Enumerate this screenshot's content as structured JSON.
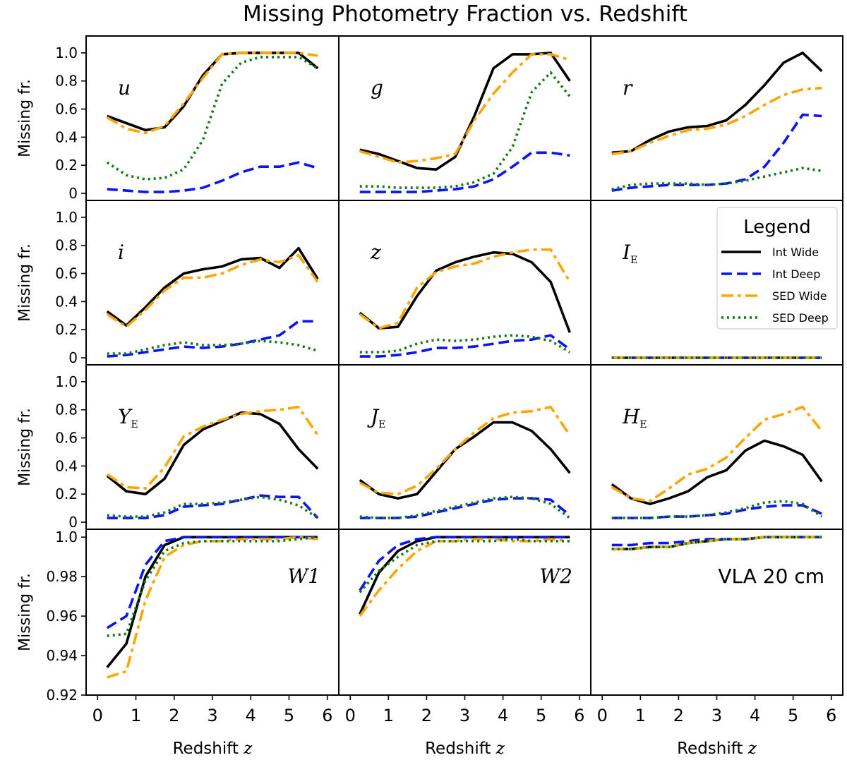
{
  "chart_data": {
    "type": "line",
    "title": "Missing Photometry Fraction vs. Redshift",
    "xlabel": "Redshift z",
    "ylabel": "Missing fr.",
    "x": [
      0.25,
      0.75,
      1.25,
      1.75,
      2.25,
      2.75,
      3.25,
      3.75,
      4.25,
      4.75,
      5.25,
      5.75
    ],
    "xlim": [
      -0.3,
      6.3
    ],
    "xticks": [
      "0",
      "1",
      "2",
      "3",
      "4",
      "5",
      "6"
    ],
    "ylim_main": [
      -0.05,
      1.12
    ],
    "yticks_main": [
      "0",
      "0.2",
      "0.4",
      "0.6",
      "0.8",
      "1.0"
    ],
    "ylim_bottom": [
      0.92,
      1.004
    ],
    "yticks_bottom": [
      "0.92",
      "0.94",
      "0.96",
      "0.98",
      "1.0"
    ],
    "legend": {
      "title": "Legend",
      "placement": "inside panel I_E, top-right",
      "entries": [
        "Int Wide",
        "Int Deep",
        "SED Wide",
        "SED Deep"
      ]
    },
    "series_styles": [
      {
        "name": "Int Wide",
        "color": "#000000",
        "dash": "solid"
      },
      {
        "name": "Int Deep",
        "color": "#0a14f5",
        "dash": "dashed"
      },
      {
        "name": "SED Wide",
        "color": "#ffa500",
        "dash": "dashdot"
      },
      {
        "name": "SED Deep",
        "color": "#137a13",
        "dash": "dotted"
      }
    ],
    "panels": [
      {
        "label": "u",
        "italic": true,
        "series": [
          {
            "name": "Int Wide",
            "values": [
              0.55,
              0.5,
              0.45,
              0.47,
              0.62,
              0.84,
              0.99,
              1.0,
              1.0,
              1.0,
              1.0,
              0.89
            ]
          },
          {
            "name": "Int Deep",
            "values": [
              0.03,
              0.02,
              0.01,
              0.01,
              0.02,
              0.04,
              0.09,
              0.15,
              0.19,
              0.19,
              0.22,
              0.18
            ]
          },
          {
            "name": "SED Wide",
            "values": [
              0.54,
              0.46,
              0.43,
              0.48,
              0.64,
              0.82,
              0.99,
              1.0,
              1.0,
              1.0,
              1.0,
              0.98
            ]
          },
          {
            "name": "SED Deep",
            "values": [
              0.22,
              0.13,
              0.1,
              0.11,
              0.17,
              0.38,
              0.78,
              0.93,
              0.97,
              0.97,
              0.97,
              0.89
            ]
          }
        ]
      },
      {
        "label": "g",
        "italic": true,
        "series": [
          {
            "name": "Int Wide",
            "values": [
              0.31,
              0.28,
              0.23,
              0.18,
              0.17,
              0.26,
              0.55,
              0.89,
              0.99,
              0.99,
              1.0,
              0.8
            ]
          },
          {
            "name": "Int Deep",
            "values": [
              0.01,
              0.01,
              0.01,
              0.01,
              0.02,
              0.03,
              0.05,
              0.1,
              0.19,
              0.29,
              0.29,
              0.27
            ]
          },
          {
            "name": "SED Wide",
            "values": [
              0.3,
              0.26,
              0.22,
              0.23,
              0.25,
              0.28,
              0.52,
              0.71,
              0.86,
              0.99,
              0.99,
              0.95
            ]
          },
          {
            "name": "SED Deep",
            "values": [
              0.05,
              0.05,
              0.04,
              0.04,
              0.04,
              0.05,
              0.08,
              0.14,
              0.33,
              0.72,
              0.86,
              0.69
            ]
          }
        ]
      },
      {
        "label": "r",
        "italic": true,
        "series": [
          {
            "name": "Int Wide",
            "values": [
              0.29,
              0.3,
              0.38,
              0.44,
              0.47,
              0.48,
              0.52,
              0.63,
              0.77,
              0.93,
              1.0,
              0.87
            ]
          },
          {
            "name": "Int Deep",
            "values": [
              0.02,
              0.04,
              0.05,
              0.06,
              0.06,
              0.06,
              0.07,
              0.1,
              0.19,
              0.36,
              0.56,
              0.55
            ]
          },
          {
            "name": "SED Wide",
            "values": [
              0.28,
              0.3,
              0.36,
              0.41,
              0.45,
              0.46,
              0.49,
              0.55,
              0.63,
              0.7,
              0.74,
              0.75
            ]
          },
          {
            "name": "SED Deep",
            "values": [
              0.03,
              0.06,
              0.07,
              0.07,
              0.07,
              0.06,
              0.07,
              0.09,
              0.12,
              0.15,
              0.18,
              0.16
            ]
          }
        ]
      },
      {
        "label": "i",
        "italic": true,
        "series": [
          {
            "name": "Int Wide",
            "values": [
              0.33,
              0.23,
              0.36,
              0.5,
              0.6,
              0.63,
              0.65,
              0.7,
              0.71,
              0.64,
              0.78,
              0.56
            ]
          },
          {
            "name": "Int Deep",
            "values": [
              0.01,
              0.02,
              0.04,
              0.06,
              0.08,
              0.07,
              0.08,
              0.1,
              0.13,
              0.16,
              0.26,
              0.26
            ]
          },
          {
            "name": "SED Wide",
            "values": [
              0.31,
              0.22,
              0.34,
              0.48,
              0.57,
              0.57,
              0.6,
              0.66,
              0.7,
              0.68,
              0.73,
              0.54
            ]
          },
          {
            "name": "SED Deep",
            "values": [
              0.03,
              0.03,
              0.06,
              0.09,
              0.11,
              0.09,
              0.09,
              0.1,
              0.12,
              0.11,
              0.09,
              0.05
            ]
          }
        ]
      },
      {
        "label": "z",
        "italic": true,
        "series": [
          {
            "name": "Int Wide",
            "values": [
              0.32,
              0.21,
              0.22,
              0.44,
              0.62,
              0.68,
              0.72,
              0.75,
              0.74,
              0.68,
              0.54,
              0.18
            ]
          },
          {
            "name": "Int Deep",
            "values": [
              0.01,
              0.01,
              0.02,
              0.04,
              0.07,
              0.07,
              0.08,
              0.1,
              0.12,
              0.13,
              0.16,
              0.06
            ]
          },
          {
            "name": "SED Wide",
            "values": [
              0.31,
              0.21,
              0.25,
              0.5,
              0.61,
              0.65,
              0.67,
              0.72,
              0.75,
              0.77,
              0.77,
              0.54
            ]
          },
          {
            "name": "SED Deep",
            "values": [
              0.04,
              0.04,
              0.05,
              0.1,
              0.13,
              0.12,
              0.13,
              0.15,
              0.16,
              0.15,
              0.12,
              0.04
            ]
          }
        ]
      },
      {
        "label": "I",
        "sub": "E",
        "italic": true,
        "series": [
          {
            "name": "Int Wide",
            "values": [
              0,
              0,
              0,
              0,
              0,
              0,
              0,
              0,
              0,
              0,
              0,
              0
            ]
          },
          {
            "name": "Int Deep",
            "values": [
              0,
              0,
              0,
              0,
              0,
              0,
              0,
              0,
              0,
              0,
              0,
              0
            ]
          },
          {
            "name": "SED Wide",
            "values": [
              0,
              0,
              0,
              0,
              0,
              0,
              0,
              0,
              0,
              0,
              0,
              0
            ]
          },
          {
            "name": "SED Deep",
            "values": [
              0,
              0,
              0,
              0,
              0,
              0,
              0,
              0,
              0,
              0,
              0,
              0
            ]
          }
        ]
      },
      {
        "label": "Y",
        "sub": "E",
        "italic": true,
        "series": [
          {
            "name": "Int Wide",
            "values": [
              0.33,
              0.22,
              0.2,
              0.31,
              0.55,
              0.66,
              0.72,
              0.78,
              0.77,
              0.7,
              0.52,
              0.38
            ]
          },
          {
            "name": "Int Deep",
            "values": [
              0.03,
              0.03,
              0.03,
              0.05,
              0.11,
              0.12,
              0.13,
              0.16,
              0.19,
              0.18,
              0.18,
              0.03
            ]
          },
          {
            "name": "SED Wide",
            "values": [
              0.34,
              0.25,
              0.24,
              0.39,
              0.61,
              0.68,
              0.73,
              0.77,
              0.79,
              0.8,
              0.82,
              0.62
            ]
          },
          {
            "name": "SED Deep",
            "values": [
              0.05,
              0.04,
              0.04,
              0.07,
              0.13,
              0.13,
              0.14,
              0.16,
              0.18,
              0.16,
              0.12,
              0.03
            ]
          }
        ]
      },
      {
        "label": "J",
        "sub": "E",
        "italic": true,
        "series": [
          {
            "name": "Int Wide",
            "values": [
              0.3,
              0.2,
              0.17,
              0.2,
              0.36,
              0.52,
              0.61,
              0.71,
              0.71,
              0.65,
              0.52,
              0.35
            ]
          },
          {
            "name": "Int Deep",
            "values": [
              0.03,
              0.03,
              0.03,
              0.04,
              0.07,
              0.1,
              0.13,
              0.16,
              0.17,
              0.17,
              0.16,
              0.05
            ]
          },
          {
            "name": "SED Wide",
            "values": [
              0.28,
              0.21,
              0.2,
              0.26,
              0.38,
              0.52,
              0.64,
              0.74,
              0.78,
              0.79,
              0.82,
              0.62
            ]
          },
          {
            "name": "SED Deep",
            "values": [
              0.04,
              0.03,
              0.03,
              0.05,
              0.08,
              0.11,
              0.14,
              0.17,
              0.18,
              0.17,
              0.13,
              0.03
            ]
          }
        ]
      },
      {
        "label": "H",
        "sub": "E",
        "italic": true,
        "series": [
          {
            "name": "Int Wide",
            "values": [
              0.27,
              0.17,
              0.13,
              0.17,
              0.22,
              0.32,
              0.37,
              0.51,
              0.58,
              0.54,
              0.48,
              0.29
            ]
          },
          {
            "name": "Int Deep",
            "values": [
              0.03,
              0.03,
              0.03,
              0.04,
              0.04,
              0.05,
              0.06,
              0.09,
              0.11,
              0.12,
              0.12,
              0.06
            ]
          },
          {
            "name": "SED Wide",
            "values": [
              0.25,
              0.17,
              0.15,
              0.24,
              0.34,
              0.38,
              0.46,
              0.6,
              0.73,
              0.77,
              0.82,
              0.65
            ]
          },
          {
            "name": "SED Deep",
            "values": [
              0.03,
              0.03,
              0.03,
              0.04,
              0.04,
              0.05,
              0.07,
              0.1,
              0.14,
              0.15,
              0.13,
              0.04
            ]
          }
        ]
      },
      {
        "label": "W1",
        "italic": true,
        "series": [
          {
            "name": "Int Wide",
            "values": [
              0.934,
              0.946,
              0.98,
              0.996,
              1.0,
              1.0,
              1.0,
              1.0,
              1.0,
              1.0,
              1.0,
              1.0
            ]
          },
          {
            "name": "Int Deep",
            "values": [
              0.954,
              0.96,
              0.986,
              0.998,
              1.0,
              1.0,
              1.0,
              1.0,
              1.0,
              1.0,
              1.0,
              1.0
            ]
          },
          {
            "name": "SED Wide",
            "values": [
              0.929,
              0.932,
              0.968,
              0.99,
              0.996,
              0.998,
              0.998,
              0.999,
              0.999,
              0.999,
              1.0,
              0.999
            ]
          },
          {
            "name": "SED Deep",
            "values": [
              0.95,
              0.951,
              0.978,
              0.993,
              0.997,
              0.998,
              0.998,
              0.998,
              0.998,
              0.998,
              0.999,
              1.0
            ]
          }
        ]
      },
      {
        "label": "W2",
        "italic": true,
        "series": [
          {
            "name": "Int Wide",
            "values": [
              0.961,
              0.982,
              0.993,
              0.998,
              1.0,
              1.0,
              1.0,
              1.0,
              1.0,
              1.0,
              1.0,
              1.0
            ]
          },
          {
            "name": "Int Deep",
            "values": [
              0.973,
              0.988,
              0.996,
              0.999,
              1.0,
              1.0,
              1.0,
              1.0,
              1.0,
              1.0,
              1.0,
              1.0
            ]
          },
          {
            "name": "SED Wide",
            "values": [
              0.96,
              0.973,
              0.984,
              0.993,
              0.998,
              0.998,
              0.999,
              0.999,
              0.998,
              0.998,
              0.999,
              0.998
            ]
          },
          {
            "name": "SED Deep",
            "values": [
              0.972,
              0.983,
              0.99,
              0.996,
              0.998,
              0.998,
              0.998,
              0.998,
              0.999,
              0.998,
              0.998,
              0.998
            ]
          }
        ]
      },
      {
        "label": "VLA 20 cm",
        "italic": false,
        "series": [
          {
            "name": "Int Wide",
            "values": [
              0.994,
              0.994,
              0.995,
              0.995,
              0.997,
              0.998,
              0.999,
              0.999,
              1.0,
              1.0,
              1.0,
              1.0
            ]
          },
          {
            "name": "Int Deep",
            "values": [
              0.996,
              0.996,
              0.997,
              0.997,
              0.998,
              0.999,
              0.999,
              0.999,
              1.0,
              1.0,
              1.0,
              1.0
            ]
          },
          {
            "name": "SED Wide",
            "values": [
              0.994,
              0.994,
              0.995,
              0.995,
              0.997,
              0.998,
              0.999,
              0.999,
              1.0,
              1.0,
              1.0,
              1.0
            ]
          },
          {
            "name": "SED Deep",
            "values": [
              0.994,
              0.994,
              0.995,
              0.995,
              0.997,
              0.998,
              0.999,
              0.999,
              1.0,
              1.0,
              1.0,
              1.0
            ]
          }
        ]
      }
    ]
  }
}
